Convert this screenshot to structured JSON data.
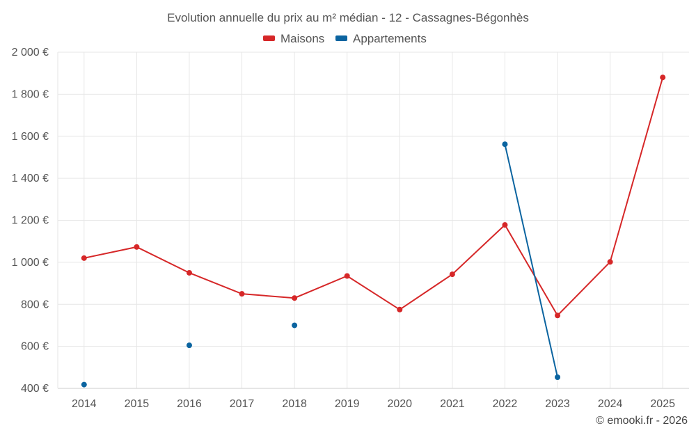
{
  "chart_data": {
    "type": "line",
    "title": "Evolution annuelle du prix au m² médian - 12 - Cassagnes-Bégonhès",
    "categories": [
      "2014",
      "2015",
      "2016",
      "2017",
      "2018",
      "2019",
      "2020",
      "2021",
      "2022",
      "2023",
      "2024",
      "2025"
    ],
    "y_tick_labels": [
      "2 000 €",
      "1 800 €",
      "1 600 €",
      "1 400 €",
      "1 200 €",
      "1 000 €",
      "800 €",
      "600 €",
      "400 €"
    ],
    "ylim": [
      400,
      2000
    ],
    "grid": true,
    "legend_position": "top-center",
    "series": [
      {
        "name": "Maisons",
        "color": "#d62728",
        "values": [
          1020,
          1073,
          950,
          850,
          830,
          935,
          775,
          943,
          1178,
          747,
          1002,
          1880
        ]
      },
      {
        "name": "Appartements",
        "color": "#0b64a0",
        "values": [
          418,
          null,
          605,
          null,
          700,
          null,
          null,
          null,
          1562,
          453,
          null,
          null
        ]
      }
    ]
  },
  "footer": {
    "credit": "© emooki.fr - 2026"
  }
}
